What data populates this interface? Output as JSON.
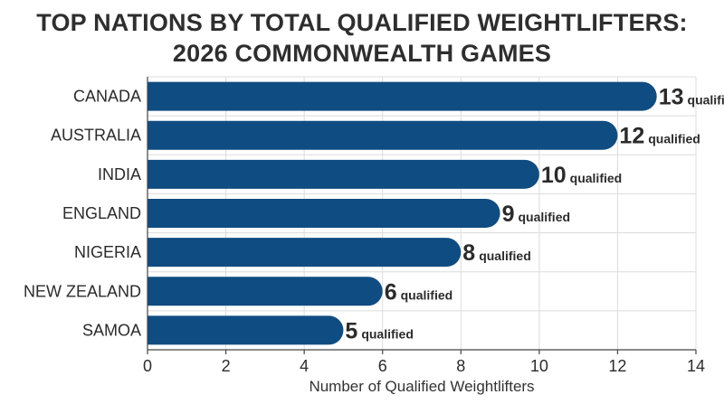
{
  "chart_data": {
    "type": "bar",
    "orientation": "horizontal",
    "title_lines": [
      "TOP NATIONS BY TOTAL QUALIFIED WEIGHTLIFTERS:",
      "2026 COMMONWEALTH GAMES"
    ],
    "categories": [
      "CANADA",
      "AUSTRALIA",
      "INDIA",
      "ENGLAND",
      "NIGERIA",
      "NEW ZEALAND",
      "SAMOA"
    ],
    "values": [
      13,
      12,
      10,
      9,
      8,
      6,
      5
    ],
    "value_suffix": "qualified",
    "xlabel": "Number of Qualified Weightlifters",
    "ylabel": "",
    "xlim": [
      0,
      14
    ],
    "xticks": [
      0,
      2,
      4,
      6,
      8,
      10,
      12,
      14
    ],
    "grid": true,
    "bar_color": "#0f4c81"
  }
}
